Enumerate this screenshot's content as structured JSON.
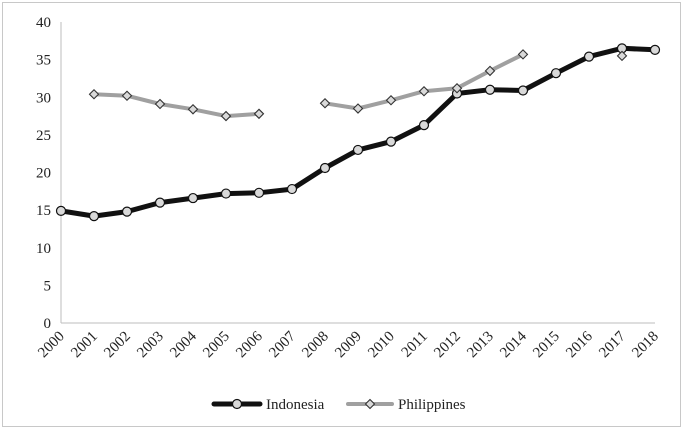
{
  "chart_data": {
    "type": "line",
    "title": "",
    "xlabel": "",
    "ylabel": "",
    "x": [
      "2000",
      "2001",
      "2002",
      "2003",
      "2004",
      "2005",
      "2006",
      "2007",
      "2008",
      "2009",
      "2010",
      "2011",
      "2012",
      "2013",
      "2014",
      "2015",
      "2016",
      "2017",
      "2018"
    ],
    "ylim": [
      0,
      40
    ],
    "yticks": [
      0,
      5,
      10,
      15,
      20,
      25,
      30,
      35,
      40
    ],
    "grid": false,
    "legend_position": "bottom",
    "series": [
      {
        "name": "Indonesia",
        "color": "#111111",
        "marker": "circle",
        "values": [
          14.9,
          14.2,
          14.8,
          16.0,
          16.6,
          17.2,
          17.3,
          17.8,
          20.6,
          23.0,
          24.1,
          26.3,
          30.5,
          31.0,
          30.9,
          33.2,
          35.4,
          36.5,
          36.3
        ]
      },
      {
        "name": "Philippines",
        "color": "#a0a0a0",
        "marker": "diamond",
        "values": [
          null,
          30.4,
          30.2,
          29.1,
          28.4,
          27.5,
          27.8,
          null,
          29.2,
          28.5,
          29.6,
          30.8,
          31.2,
          33.5,
          35.7,
          null,
          null,
          35.5,
          null
        ]
      }
    ]
  }
}
